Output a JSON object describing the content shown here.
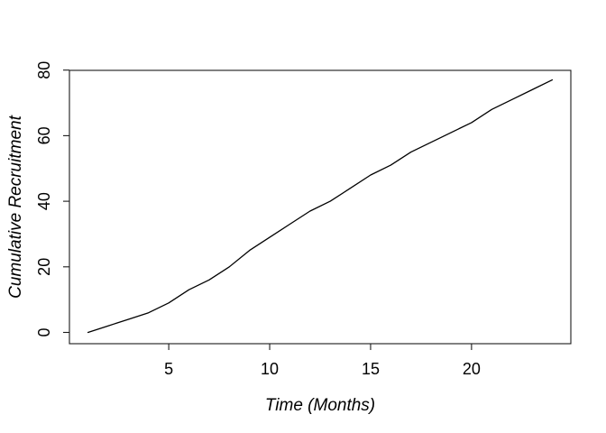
{
  "chart_data": {
    "type": "line",
    "title": "",
    "xlabel": "Time (Months)",
    "ylabel": "Cumulative Recruitment",
    "x": [
      1,
      2,
      3,
      4,
      5,
      6,
      7,
      8,
      9,
      10,
      11,
      12,
      13,
      14,
      15,
      16,
      17,
      18,
      19,
      20,
      21,
      22,
      23,
      24
    ],
    "values": [
      0,
      2,
      4,
      6,
      9,
      13,
      16,
      20,
      25,
      29,
      33,
      37,
      40,
      44,
      48,
      51,
      55,
      58,
      61,
      64,
      68,
      71,
      74,
      77
    ],
    "xticks": [
      5,
      10,
      15,
      20
    ],
    "yticks": [
      0,
      20,
      40,
      60,
      80
    ],
    "xlim": [
      0.08,
      24.92
    ],
    "ylim": [
      -3.44,
      79.92
    ],
    "grid": false,
    "legend": "none",
    "line_color": "#000000",
    "axis_color": "#1a1a1a",
    "background_color": "#ffffff"
  }
}
